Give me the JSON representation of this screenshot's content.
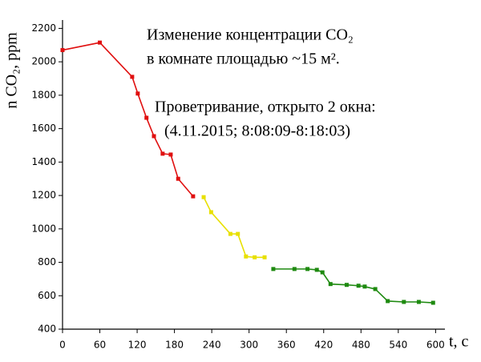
{
  "chart_data": {
    "type": "line",
    "annotations": [
      "Изменение концентрации CO₂",
      "в комнате площадью ~15 м².",
      "Проветривание, открыто 2 окна:",
      "(4.11.2015;  8:08:09-8:18:03)"
    ],
    "x_label": "t, c",
    "y_label": "n CO₂, ppm",
    "xlim": [
      0,
      615
    ],
    "xticks": [
      0,
      60,
      120,
      180,
      240,
      300,
      360,
      420,
      480,
      540,
      600
    ],
    "ylim": [
      400,
      2250
    ],
    "yticks": [
      400,
      600,
      800,
      1000,
      1200,
      1400,
      1600,
      1800,
      2000,
      2200
    ],
    "series": [
      {
        "color": "#e01010",
        "x": [
          0,
          60,
          112,
          121,
          135,
          147,
          161,
          174,
          186,
          210
        ],
        "values": [
          2070,
          2115,
          1910,
          1810,
          1665,
          1555,
          1450,
          1445,
          1300,
          1195
        ]
      },
      {
        "color": "#e8e000",
        "x": [
          227,
          239,
          270,
          282,
          295,
          309,
          325
        ],
        "values": [
          1190,
          1100,
          970,
          970,
          835,
          830,
          830
        ]
      },
      {
        "color": "#1e8a10",
        "x": [
          339,
          373,
          394,
          409,
          418,
          431,
          457,
          476,
          486,
          503,
          523,
          549,
          573,
          596
        ],
        "values": [
          760,
          760,
          760,
          755,
          740,
          670,
          665,
          660,
          655,
          640,
          568,
          563,
          563,
          558
        ]
      }
    ]
  }
}
